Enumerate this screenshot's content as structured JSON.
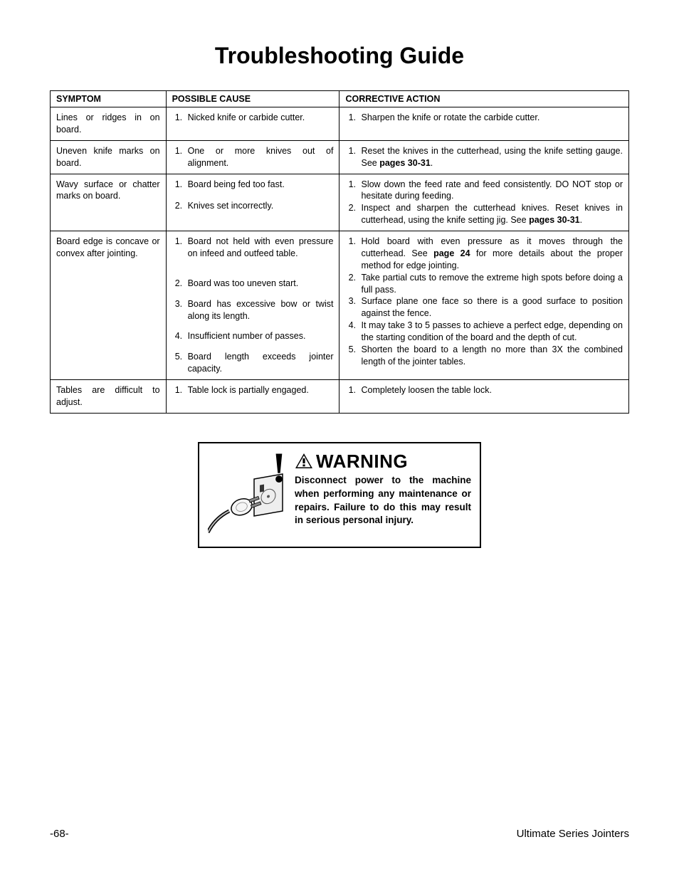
{
  "title": "Troubleshooting Guide",
  "headers": {
    "symptom": "SYMPTOM",
    "cause": "POSSIBLE CAUSE",
    "action": "CORRECTIVE ACTION"
  },
  "rows": [
    {
      "symptom": "Lines or ridges in on board.",
      "causes": [
        "Nicked knife or carbide cutter."
      ],
      "actions": [
        {
          "pre": "Sharpen the knife or rotate the carbide cutter.",
          "bold": "",
          "post": ""
        }
      ]
    },
    {
      "symptom": "Uneven knife marks on board.",
      "causes": [
        "One or more knives out of alignment."
      ],
      "actions": [
        {
          "pre": "Reset the knives in the cutterhead, using the knife setting gauge. See ",
          "bold": "pages 30-31",
          "post": "."
        }
      ]
    },
    {
      "symptom": "Wavy surface or chatter marks on board.",
      "causes": [
        "Board being fed too fast.",
        "Knives set incorrectly."
      ],
      "actions": [
        {
          "pre": "Slow down the feed rate and feed consistently. DO NOT stop or hesitate during feeding.",
          "bold": "",
          "post": ""
        },
        {
          "pre": "Inspect and sharpen the cutterhead knives. Reset knives in cutterhead, using the knife setting jig. See ",
          "bold": "pages 30-31",
          "post": "."
        }
      ]
    },
    {
      "symptom": "Board edge is concave or convex after jointing.",
      "causes": [
        "Board not held with even pressure on infeed and outfeed table.",
        "Board was too uneven start.",
        "Board has excessive bow or twist along its length.",
        "Insufficient number of passes.",
        "Board length exceeds jointer capacity."
      ],
      "actions": [
        {
          "pre": "Hold board with even pressure as it moves through the cutterhead. See ",
          "bold": "page 24",
          "post": " for more details about the proper method for edge jointing."
        },
        {
          "pre": "Take partial cuts to remove the extreme high spots before doing a full pass.",
          "bold": "",
          "post": ""
        },
        {
          "pre": "Surface plane one face so there is a good surface to position against the fence.",
          "bold": "",
          "post": ""
        },
        {
          "pre": "It may take 3 to 5 passes to achieve a perfect edge, depending on the starting condition of the board and the depth of cut.",
          "bold": "",
          "post": ""
        },
        {
          "pre": "Shorten the board to a length no more than 3X the combined length of the jointer tables.",
          "bold": "",
          "post": ""
        }
      ]
    },
    {
      "symptom": "Tables are difficult to adjust.",
      "causes": [
        "Table lock is partially engaged."
      ],
      "actions": [
        {
          "pre": "Completely loosen the table lock.",
          "bold": "",
          "post": ""
        }
      ]
    }
  ],
  "warning": {
    "heading": "WARNING",
    "body": "Disconnect power to the machine when performing any maintenance or repairs. Failure to do this may result in serious personal injury."
  },
  "footer": {
    "page": "-68-",
    "doc": "Ultimate Series Jointers"
  }
}
